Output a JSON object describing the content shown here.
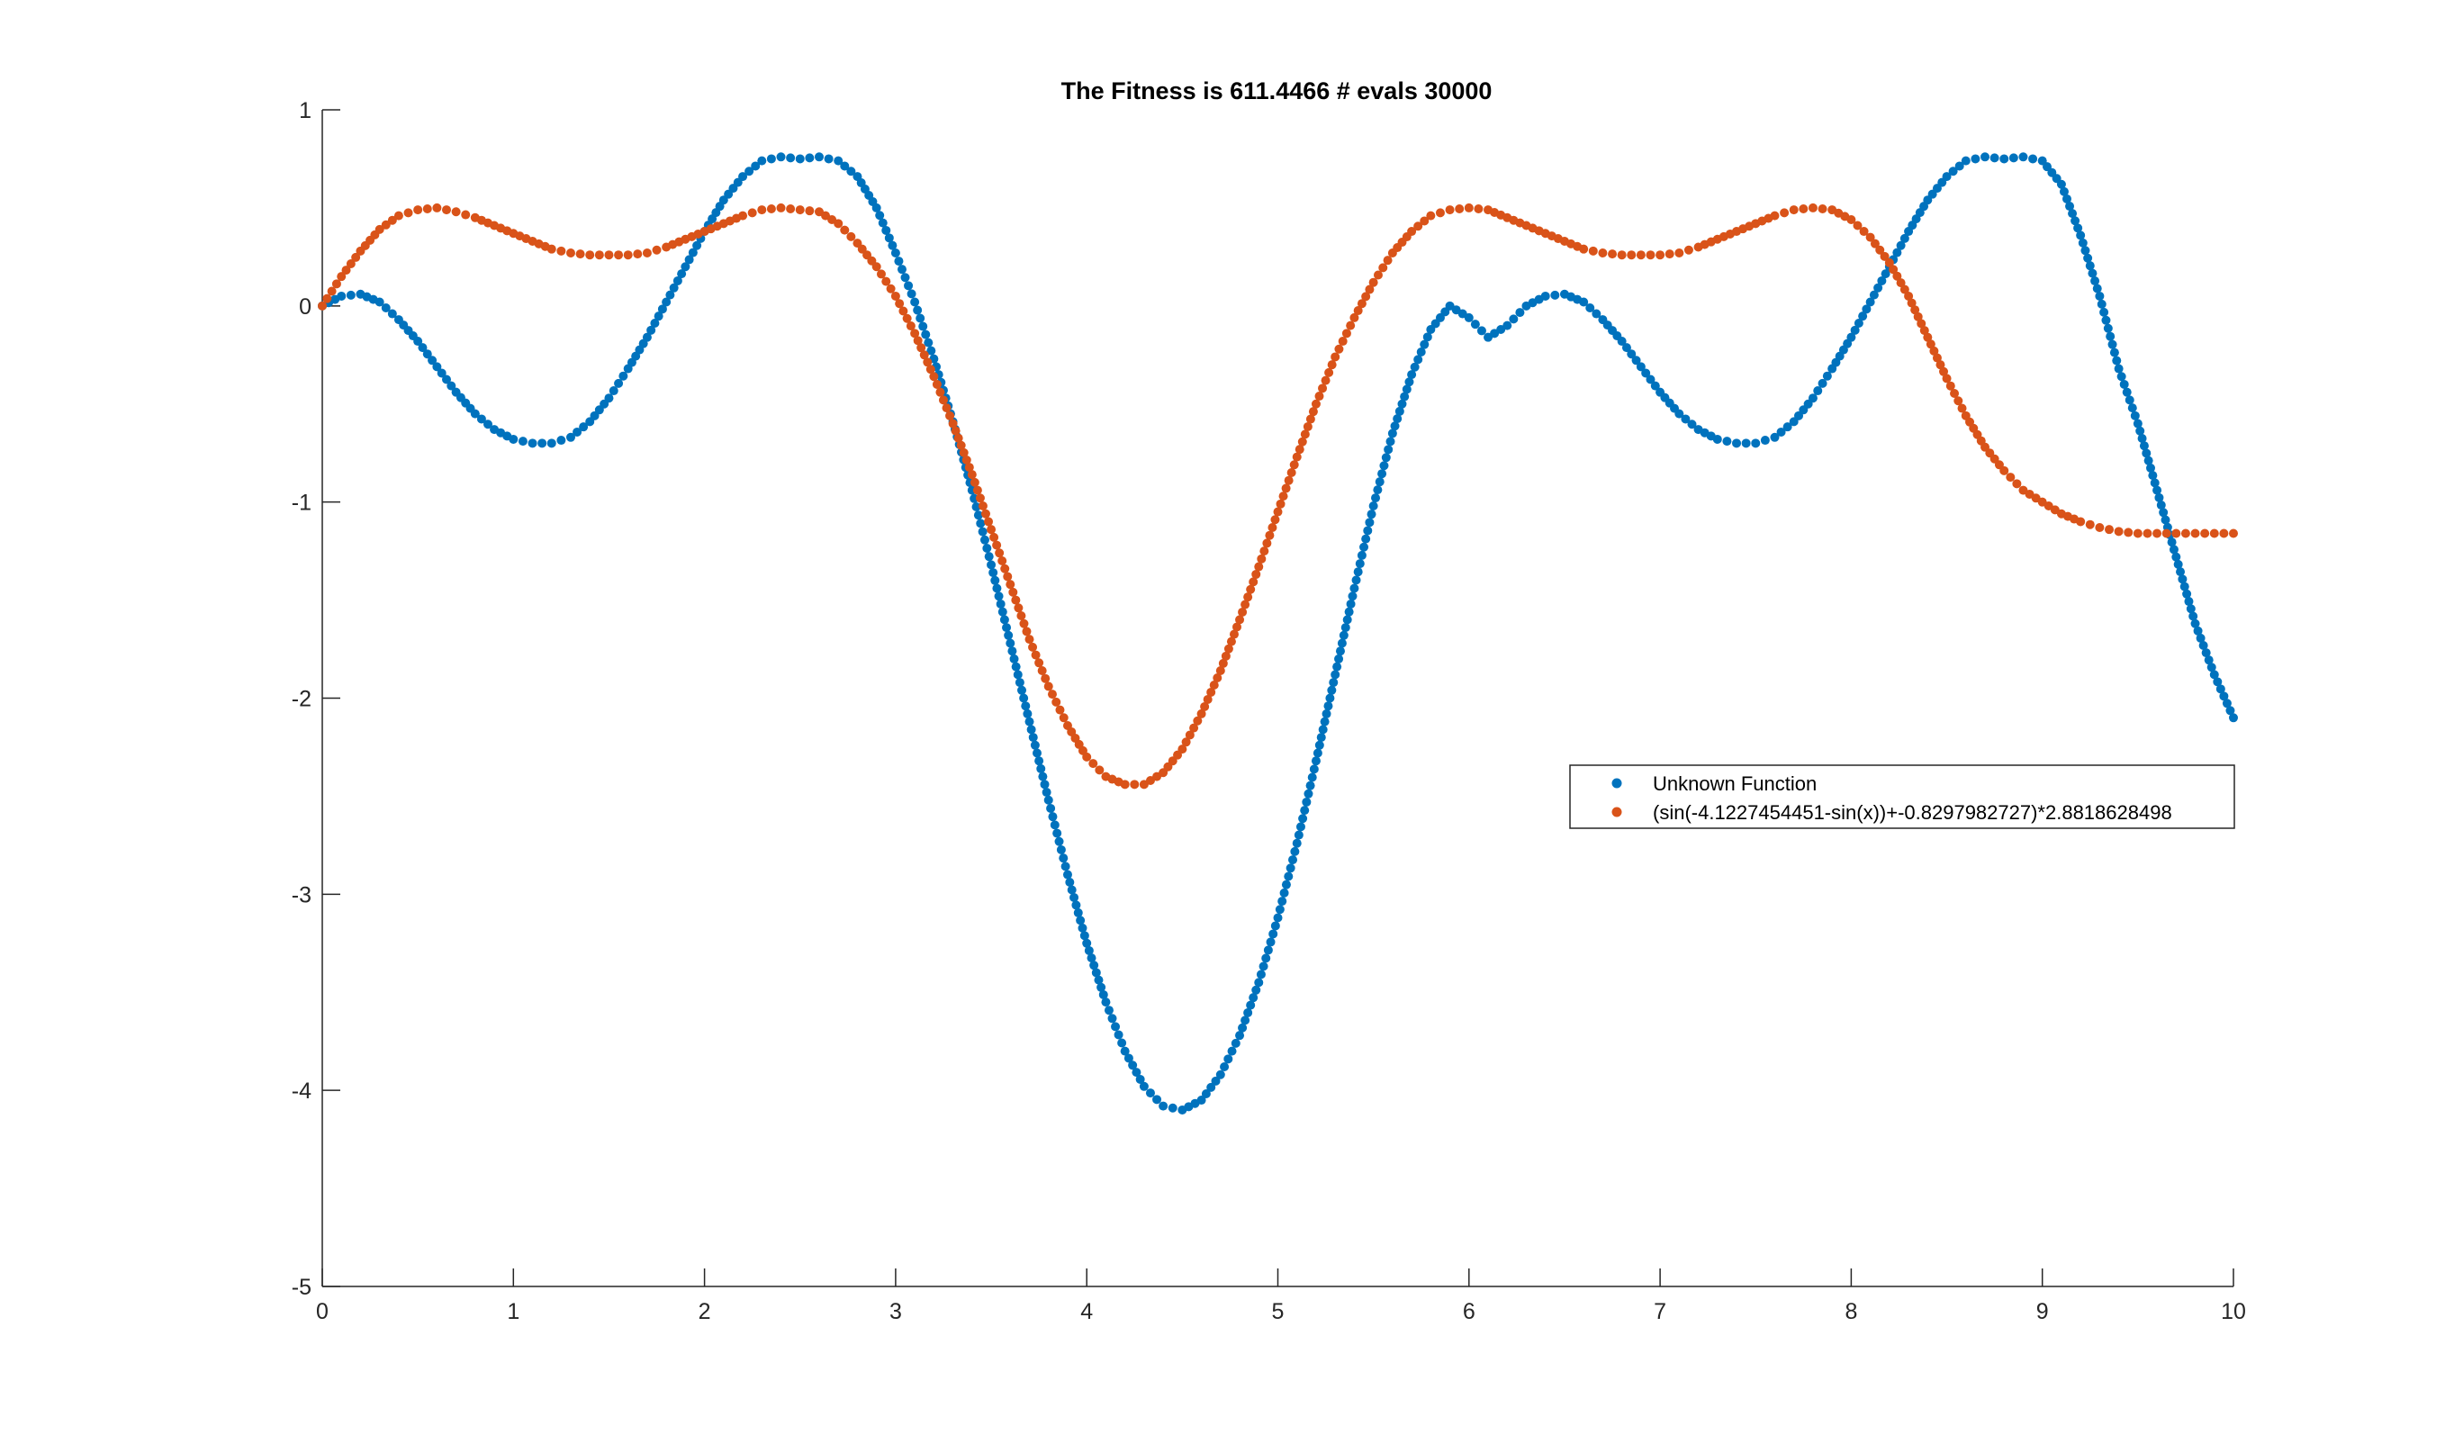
{
  "chart_data": {
    "type": "scatter",
    "title": "The Fitness is 611.4466 # evals 30000",
    "xlabel": "",
    "ylabel": "",
    "xlim": [
      0,
      10
    ],
    "ylim": [
      -5,
      1
    ],
    "xticks": [
      "0",
      "1",
      "2",
      "3",
      "4",
      "5",
      "6",
      "7",
      "8",
      "9",
      "10"
    ],
    "yticks": [
      "1",
      "0",
      "-1",
      "-2",
      "-3",
      "-4",
      "-5"
    ],
    "grid": false,
    "legend_position": "right",
    "series": [
      {
        "name": "Unknown Function",
        "color": "#0072BD",
        "x": [
          0.0,
          0.1,
          0.2,
          0.3,
          0.4,
          0.5,
          0.6,
          0.7,
          0.8,
          0.9,
          1.0,
          1.1,
          1.2,
          1.3,
          1.4,
          1.5,
          1.6,
          1.7,
          1.8,
          1.9,
          2.0,
          2.1,
          2.2,
          2.3,
          2.4,
          2.5,
          2.6,
          2.7,
          2.8,
          2.9,
          3.0,
          3.1,
          3.2,
          3.3,
          3.4,
          3.5,
          3.6,
          3.7,
          3.8,
          3.9,
          4.0,
          4.1,
          4.2,
          4.3,
          4.4,
          4.5,
          4.6,
          4.7,
          4.8,
          4.9,
          5.0,
          5.1,
          5.2,
          5.3,
          5.4,
          5.5,
          5.6,
          5.7,
          5.8,
          5.9,
          6.0,
          6.1,
          6.2,
          6.3,
          6.4,
          6.5,
          6.6,
          6.7,
          6.8,
          6.9,
          7.0,
          7.1,
          7.2,
          7.3,
          7.4,
          7.5,
          7.6,
          7.7,
          7.8,
          7.9,
          8.0,
          8.1,
          8.2,
          8.3,
          8.4,
          8.5,
          8.6,
          8.7,
          8.8,
          8.9,
          9.0,
          9.1,
          9.2,
          9.3,
          9.4,
          9.5,
          9.6,
          9.7,
          9.8,
          9.9,
          10.0
        ],
        "y": [
          0.0,
          0.05,
          0.06,
          0.02,
          -0.07,
          -0.18,
          -0.31,
          -0.44,
          -0.55,
          -0.63,
          -0.68,
          -0.7,
          -0.7,
          -0.67,
          -0.59,
          -0.47,
          -0.32,
          -0.16,
          0.02,
          0.2,
          0.38,
          0.54,
          0.66,
          0.74,
          0.76,
          0.75,
          0.76,
          0.74,
          0.66,
          0.5,
          0.27,
          0.02,
          -0.27,
          -0.59,
          -0.94,
          -1.32,
          -1.72,
          -2.12,
          -2.52,
          -2.9,
          -3.25,
          -3.55,
          -3.8,
          -3.98,
          -4.08,
          -4.1,
          -4.05,
          -3.92,
          -3.72,
          -3.45,
          -3.12,
          -2.74,
          -2.32,
          -1.88,
          -1.44,
          -1.02,
          -0.65,
          -0.35,
          -0.12,
          0.0,
          -0.06,
          -0.16,
          -0.1,
          0.0,
          0.05,
          0.06,
          0.02,
          -0.07,
          -0.18,
          -0.31,
          -0.44,
          -0.55,
          -0.63,
          -0.68,
          -0.7,
          -0.7,
          -0.67,
          -0.59,
          -0.47,
          -0.32,
          -0.16,
          0.02,
          0.2,
          0.38,
          0.54,
          0.66,
          0.74,
          0.76,
          0.75,
          0.76,
          0.74,
          0.62,
          0.36,
          0.05,
          -0.32,
          -0.6,
          -0.94,
          -1.28,
          -1.62,
          -1.88,
          -2.1
        ]
      },
      {
        "name": "(sin(-4.1227454451-sin(x))+-0.8297982727)*2.8818628498",
        "color": "#D95319",
        "x": [
          0.0,
          0.1,
          0.2,
          0.3,
          0.4,
          0.5,
          0.6,
          0.7,
          0.8,
          0.9,
          1.0,
          1.1,
          1.2,
          1.3,
          1.4,
          1.5,
          1.6,
          1.7,
          1.8,
          1.9,
          2.0,
          2.1,
          2.2,
          2.3,
          2.4,
          2.5,
          2.6,
          2.7,
          2.8,
          2.9,
          3.0,
          3.1,
          3.2,
          3.3,
          3.4,
          3.5,
          3.6,
          3.7,
          3.8,
          3.9,
          4.0,
          4.1,
          4.2,
          4.3,
          4.4,
          4.5,
          4.6,
          4.7,
          4.8,
          4.9,
          5.0,
          5.1,
          5.2,
          5.3,
          5.4,
          5.5,
          5.6,
          5.7,
          5.8,
          5.9,
          6.0,
          6.1,
          6.2,
          6.3,
          6.4,
          6.5,
          6.6,
          6.7,
          6.8,
          6.9,
          7.0,
          7.1,
          7.2,
          7.3,
          7.4,
          7.5,
          7.6,
          7.7,
          7.8,
          7.9,
          8.0,
          8.1,
          8.2,
          8.3,
          8.4,
          8.5,
          8.6,
          8.7,
          8.8,
          8.9,
          9.0,
          9.1,
          9.2,
          9.3,
          9.4,
          9.5,
          9.6,
          9.7,
          9.8,
          9.9,
          10.0
        ],
        "y": [
          0.0,
          0.15,
          0.28,
          0.39,
          0.46,
          0.49,
          0.5,
          0.48,
          0.45,
          0.41,
          0.37,
          0.33,
          0.29,
          0.27,
          0.26,
          0.26,
          0.26,
          0.27,
          0.3,
          0.34,
          0.38,
          0.42,
          0.46,
          0.49,
          0.5,
          0.49,
          0.48,
          0.42,
          0.32,
          0.2,
          0.05,
          -0.14,
          -0.36,
          -0.6,
          -0.86,
          -1.14,
          -1.42,
          -1.7,
          -1.94,
          -2.14,
          -2.3,
          -2.4,
          -2.44,
          -2.44,
          -2.38,
          -2.26,
          -2.08,
          -1.86,
          -1.6,
          -1.33,
          -1.05,
          -0.77,
          -0.5,
          -0.26,
          -0.06,
          0.12,
          0.27,
          0.38,
          0.46,
          0.49,
          0.5,
          0.49,
          0.45,
          0.41,
          0.37,
          0.33,
          0.29,
          0.27,
          0.26,
          0.26,
          0.26,
          0.27,
          0.3,
          0.34,
          0.38,
          0.42,
          0.46,
          0.49,
          0.5,
          0.49,
          0.44,
          0.35,
          0.22,
          0.05,
          -0.16,
          -0.37,
          -0.56,
          -0.72,
          -0.84,
          -0.94,
          -1.0,
          -1.06,
          -1.1,
          -1.13,
          -1.15,
          -1.16,
          -1.16,
          -1.16,
          -1.16,
          -1.16,
          -1.16
        ]
      }
    ]
  }
}
